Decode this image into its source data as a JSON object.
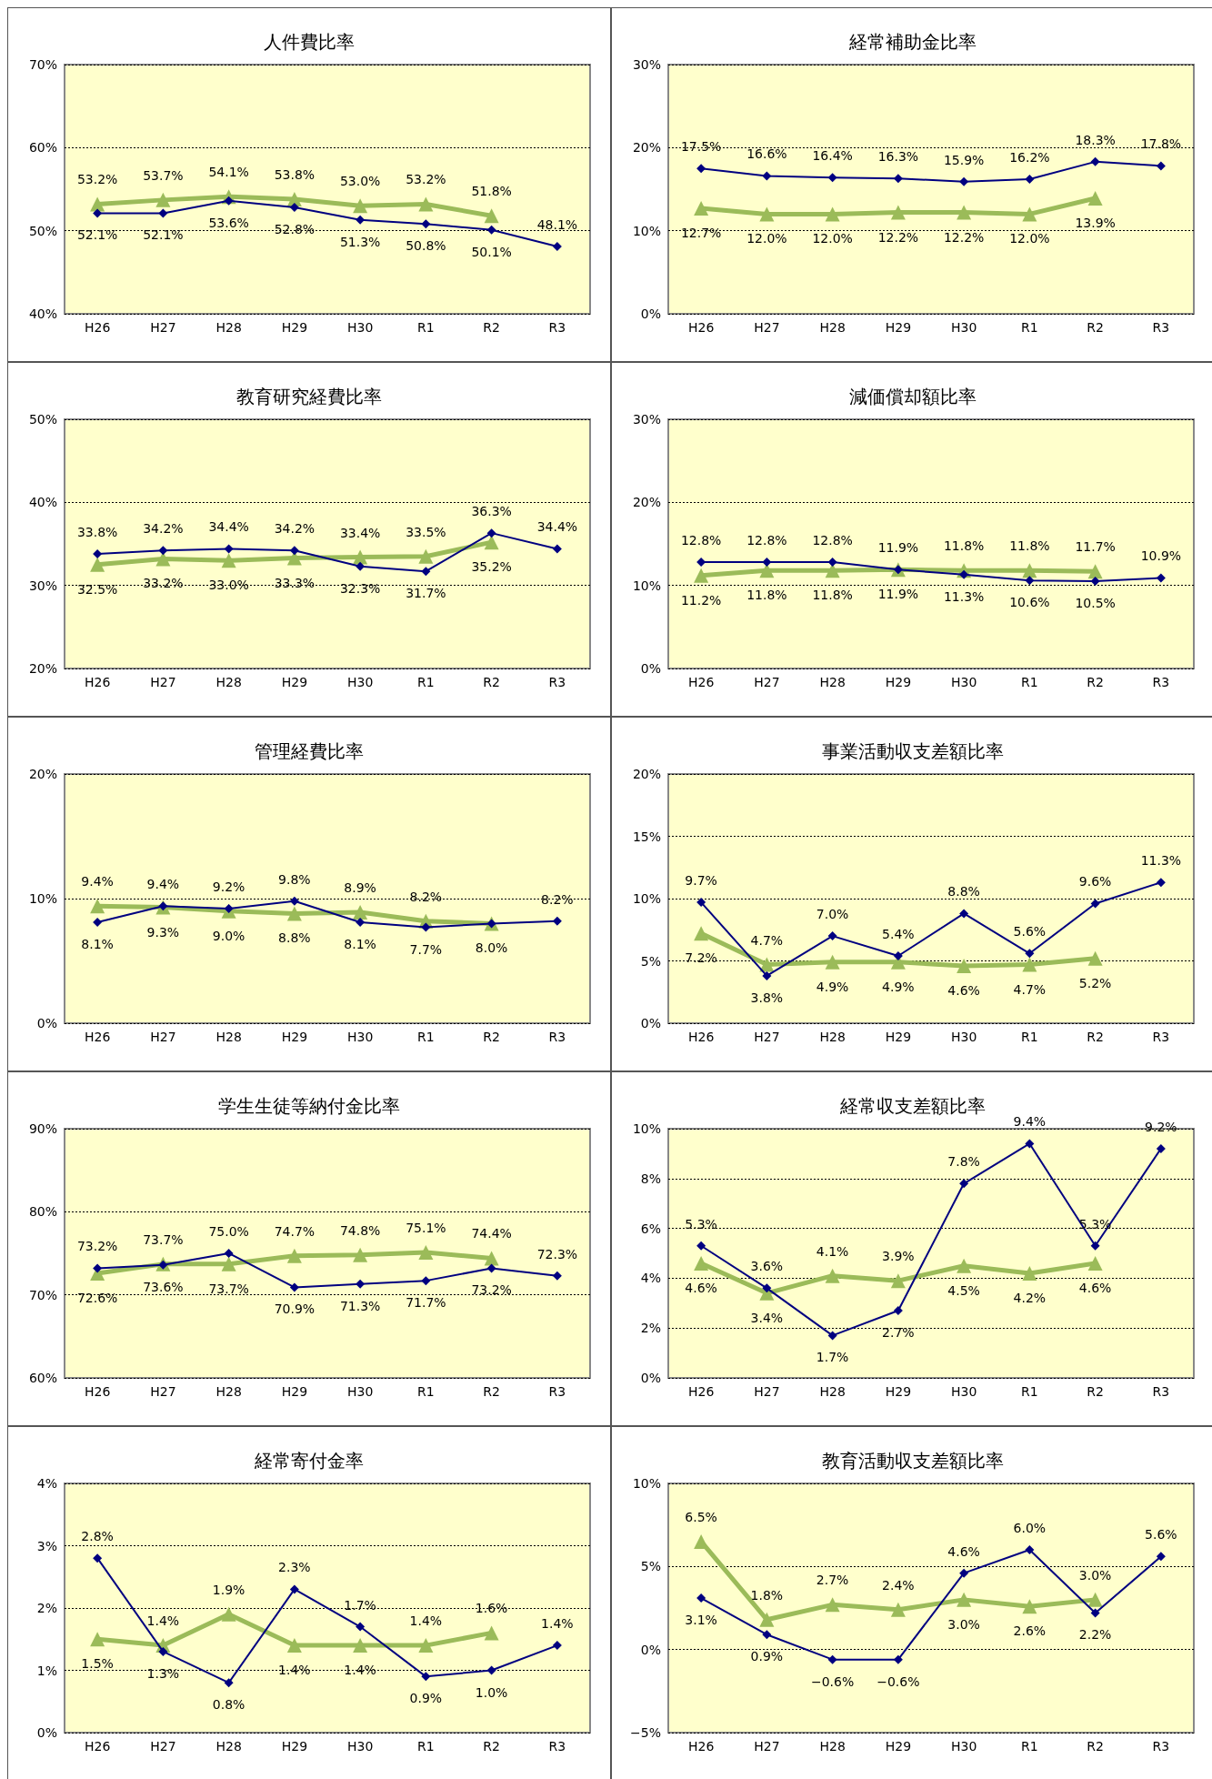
{
  "chart_data": [
    {
      "type": "line",
      "title": "人件費比率",
      "categories": [
        "H26",
        "H27",
        "H28",
        "H29",
        "H30",
        "R1",
        "R2",
        "R3"
      ],
      "ylim": [
        40,
        70
      ],
      "yticks": [
        {
          "value": 40,
          "label": "40%"
        },
        {
          "value": 50,
          "label": "50%"
        },
        {
          "value": 60,
          "label": "60%"
        },
        {
          "value": 70,
          "label": "70%"
        }
      ],
      "grid": "y",
      "series": [
        {
          "color": "#000080",
          "marker": "diamond",
          "values": [
            52.1,
            52.1,
            53.6,
            52.8,
            51.3,
            50.8,
            50.1,
            48.1
          ],
          "value_labels": [
            "52.1%",
            "52.1%",
            "53.6%",
            "52.8%",
            "51.3%",
            "50.8%",
            "50.1%",
            "48.1%"
          ]
        },
        {
          "color": "#9bbb59",
          "marker": "triangle",
          "values": [
            53.2,
            53.7,
            54.1,
            53.8,
            53.0,
            53.2,
            51.8,
            null
          ],
          "value_labels": [
            "53.2%",
            "53.7%",
            "54.1%",
            "53.8%",
            "53.0%",
            "53.2%",
            "51.8%",
            null
          ]
        }
      ]
    },
    {
      "type": "line",
      "title": "経常補助金比率",
      "categories": [
        "H26",
        "H27",
        "H28",
        "H29",
        "H30",
        "R1",
        "R2",
        "R3"
      ],
      "ylim": [
        0,
        30
      ],
      "yticks": [
        {
          "value": 0,
          "label": "0%"
        },
        {
          "value": 10,
          "label": "10%"
        },
        {
          "value": 20,
          "label": "20%"
        },
        {
          "value": 30,
          "label": "30%"
        }
      ],
      "grid": "y",
      "series": [
        {
          "color": "#000080",
          "marker": "diamond",
          "values": [
            17.5,
            16.6,
            16.4,
            16.3,
            15.9,
            16.2,
            18.3,
            17.8
          ],
          "value_labels": [
            "17.5%",
            "16.6%",
            "16.4%",
            "16.3%",
            "15.9%",
            "16.2%",
            "18.3%",
            "17.8%"
          ]
        },
        {
          "color": "#9bbb59",
          "marker": "triangle",
          "values": [
            12.7,
            12.0,
            12.0,
            12.2,
            12.2,
            12.0,
            13.9,
            null
          ],
          "value_labels": [
            "12.7%",
            "12.0%",
            "12.0%",
            "12.2%",
            "12.2%",
            "12.0%",
            "13.9%",
            null
          ]
        }
      ]
    },
    {
      "type": "line",
      "title": "教育研究経費比率",
      "categories": [
        "H26",
        "H27",
        "H28",
        "H29",
        "H30",
        "R1",
        "R2",
        "R3"
      ],
      "ylim": [
        20,
        50
      ],
      "yticks": [
        {
          "value": 20,
          "label": "20%"
        },
        {
          "value": 30,
          "label": "30%"
        },
        {
          "value": 40,
          "label": "40%"
        },
        {
          "value": 50,
          "label": "50%"
        }
      ],
      "grid": "y",
      "series": [
        {
          "color": "#000080",
          "marker": "diamond",
          "values": [
            33.8,
            34.2,
            34.4,
            34.2,
            32.3,
            31.7,
            36.3,
            34.4
          ],
          "value_labels": [
            "33.8%",
            "34.2%",
            "34.4%",
            "34.2%",
            "32.3%",
            "31.7%",
            "36.3%",
            "34.4%"
          ]
        },
        {
          "color": "#9bbb59",
          "marker": "triangle",
          "values": [
            32.5,
            33.2,
            33.0,
            33.3,
            33.4,
            33.5,
            35.2,
            null
          ],
          "value_labels": [
            "32.5%",
            "33.2%",
            "33.0%",
            "33.3%",
            "33.4%",
            "33.5%",
            "35.2%",
            null
          ]
        }
      ]
    },
    {
      "type": "line",
      "title": "減価償却額比率",
      "categories": [
        "H26",
        "H27",
        "H28",
        "H29",
        "H30",
        "R1",
        "R2",
        "R3"
      ],
      "ylim": [
        0,
        30
      ],
      "yticks": [
        {
          "value": 0,
          "label": "0%"
        },
        {
          "value": 10,
          "label": "10%"
        },
        {
          "value": 20,
          "label": "20%"
        },
        {
          "value": 30,
          "label": "30%"
        }
      ],
      "grid": "y",
      "series": [
        {
          "color": "#000080",
          "marker": "diamond",
          "values": [
            12.8,
            12.8,
            12.8,
            11.9,
            11.3,
            10.6,
            10.5,
            10.9
          ],
          "value_labels": [
            "12.8%",
            "12.8%",
            "12.8%",
            "11.9%",
            "11.3%",
            "10.6%",
            "10.5%",
            "10.9%"
          ]
        },
        {
          "color": "#9bbb59",
          "marker": "triangle",
          "values": [
            11.2,
            11.8,
            11.8,
            11.9,
            11.8,
            11.8,
            11.7,
            null
          ],
          "value_labels": [
            "11.2%",
            "11.8%",
            "11.8%",
            "11.9%",
            "11.8%",
            "11.8%",
            "11.7%",
            null
          ]
        }
      ]
    },
    {
      "type": "line",
      "title": "管理経費比率",
      "categories": [
        "H26",
        "H27",
        "H28",
        "H29",
        "H30",
        "R1",
        "R2",
        "R3"
      ],
      "ylim": [
        0,
        20
      ],
      "yticks": [
        {
          "value": 0,
          "label": "0%"
        },
        {
          "value": 10,
          "label": "10%"
        },
        {
          "value": 20,
          "label": "20%"
        }
      ],
      "grid": "y",
      "series": [
        {
          "color": "#000080",
          "marker": "diamond",
          "values": [
            8.1,
            9.4,
            9.2,
            9.8,
            8.1,
            7.7,
            8.0,
            8.2
          ],
          "value_labels": [
            "8.1%",
            "9.4%",
            "9.2%",
            "9.8%",
            "8.1%",
            "7.7%",
            null,
            "8.2%"
          ]
        },
        {
          "color": "#9bbb59",
          "marker": "triangle",
          "values": [
            9.4,
            9.3,
            9.0,
            8.8,
            8.9,
            8.2,
            8.0,
            null
          ],
          "value_labels": [
            "9.4%",
            "9.3%",
            "9.0%",
            "8.8%",
            "8.9%",
            "8.2%",
            "8.0%",
            null
          ]
        }
      ]
    },
    {
      "type": "line",
      "title": "事業活動収支差額比率",
      "categories": [
        "H26",
        "H27",
        "H28",
        "H29",
        "H30",
        "R1",
        "R2",
        "R3"
      ],
      "ylim": [
        0,
        20
      ],
      "yticks": [
        {
          "value": 0,
          "label": "0%"
        },
        {
          "value": 5,
          "label": "5%"
        },
        {
          "value": 10,
          "label": "10%"
        },
        {
          "value": 15,
          "label": "15%"
        },
        {
          "value": 20,
          "label": "20%"
        }
      ],
      "grid": "y",
      "series": [
        {
          "color": "#000080",
          "marker": "diamond",
          "values": [
            9.7,
            3.8,
            7.0,
            5.4,
            8.8,
            5.6,
            9.6,
            11.3
          ],
          "value_labels": [
            "9.7%",
            "3.8%",
            "7.0%",
            "5.4%",
            "8.8%",
            "5.6%",
            "9.6%",
            "11.3%"
          ]
        },
        {
          "color": "#9bbb59",
          "marker": "triangle",
          "values": [
            7.2,
            4.7,
            4.9,
            4.9,
            4.6,
            4.7,
            5.2,
            null
          ],
          "value_labels": [
            "7.2%",
            "4.7%",
            "4.9%",
            "4.9%",
            "4.6%",
            "4.7%",
            "5.2%",
            null
          ]
        }
      ]
    },
    {
      "type": "line",
      "title": "学生生徒等納付金比率",
      "categories": [
        "H26",
        "H27",
        "H28",
        "H29",
        "H30",
        "R1",
        "R2",
        "R3"
      ],
      "ylim": [
        60,
        90
      ],
      "yticks": [
        {
          "value": 60,
          "label": "60%"
        },
        {
          "value": 70,
          "label": "70%"
        },
        {
          "value": 80,
          "label": "80%"
        },
        {
          "value": 90,
          "label": "90%"
        }
      ],
      "grid": "y",
      "series": [
        {
          "color": "#000080",
          "marker": "diamond",
          "values": [
            73.2,
            73.6,
            75.0,
            70.9,
            71.3,
            71.7,
            73.2,
            72.3
          ],
          "value_labels": [
            "73.2%",
            "73.6%",
            "75.0%",
            "70.9%",
            "71.3%",
            "71.7%",
            "73.2%",
            "72.3%"
          ]
        },
        {
          "color": "#9bbb59",
          "marker": "triangle",
          "values": [
            72.6,
            73.7,
            73.7,
            74.7,
            74.8,
            75.1,
            74.4,
            null
          ],
          "value_labels": [
            "72.6%",
            "73.7%",
            "73.7%",
            "74.7%",
            "74.8%",
            "75.1%",
            "74.4%",
            null
          ]
        }
      ]
    },
    {
      "type": "line",
      "title": "経常収支差額比率",
      "categories": [
        "H26",
        "H27",
        "H28",
        "H29",
        "H30",
        "R1",
        "R2",
        "R3"
      ],
      "ylim": [
        0,
        10
      ],
      "yticks": [
        {
          "value": 0,
          "label": "0%"
        },
        {
          "value": 2,
          "label": "2%"
        },
        {
          "value": 4,
          "label": "4%"
        },
        {
          "value": 6,
          "label": "6%"
        },
        {
          "value": 8,
          "label": "8%"
        },
        {
          "value": 10,
          "label": "10%"
        }
      ],
      "grid": "y",
      "series": [
        {
          "color": "#000080",
          "marker": "diamond",
          "values": [
            5.3,
            3.6,
            1.7,
            2.7,
            7.8,
            9.4,
            5.3,
            9.2
          ],
          "value_labels": [
            "5.3%",
            "3.6%",
            "1.7%",
            "2.7%",
            "7.8%",
            "9.4%",
            "5.3%",
            "9.2%"
          ]
        },
        {
          "color": "#9bbb59",
          "marker": "triangle",
          "values": [
            4.6,
            3.4,
            4.1,
            3.9,
            4.5,
            4.2,
            4.6,
            null
          ],
          "value_labels": [
            "4.6%",
            "3.4%",
            "4.1%",
            "3.9%",
            "4.5%",
            "4.2%",
            "4.6%",
            null
          ]
        }
      ]
    },
    {
      "type": "line",
      "title": "経常寄付金率",
      "categories": [
        "H26",
        "H27",
        "H28",
        "H29",
        "H30",
        "R1",
        "R2",
        "R3"
      ],
      "ylim": [
        0,
        4
      ],
      "yticks": [
        {
          "value": 0,
          "label": "0%"
        },
        {
          "value": 1,
          "label": "1%"
        },
        {
          "value": 2,
          "label": "2%"
        },
        {
          "value": 3,
          "label": "3%"
        },
        {
          "value": 4,
          "label": "4%"
        }
      ],
      "grid": "y",
      "series": [
        {
          "color": "#000080",
          "marker": "diamond",
          "values": [
            2.8,
            1.3,
            0.8,
            2.3,
            1.7,
            0.9,
            1.0,
            1.4
          ],
          "value_labels": [
            "2.8%",
            "1.3%",
            "0.8%",
            "2.3%",
            "1.7%",
            "0.9%",
            "1.0%",
            "1.4%"
          ]
        },
        {
          "color": "#9bbb59",
          "marker": "triangle",
          "values": [
            1.5,
            1.4,
            1.9,
            1.4,
            1.4,
            1.4,
            1.6,
            null
          ],
          "value_labels": [
            "1.5%",
            "1.4%",
            "1.9%",
            "1.4%",
            "1.4%",
            "1.4%",
            "1.6%",
            null
          ]
        }
      ]
    },
    {
      "type": "line",
      "title": "教育活動収支差額比率",
      "categories": [
        "H26",
        "H27",
        "H28",
        "H29",
        "H30",
        "R1",
        "R2",
        "R3"
      ],
      "ylim": [
        -5,
        10
      ],
      "yticks": [
        {
          "value": -5,
          "label": "−5%"
        },
        {
          "value": 0,
          "label": "0%"
        },
        {
          "value": 5,
          "label": "5%"
        },
        {
          "value": 10,
          "label": "10%"
        }
      ],
      "grid": "y",
      "series": [
        {
          "color": "#000080",
          "marker": "diamond",
          "values": [
            3.1,
            0.9,
            -0.6,
            -0.6,
            4.6,
            6.0,
            2.2,
            5.6
          ],
          "value_labels": [
            "3.1%",
            "0.9%",
            "−0.6%",
            "−0.6%",
            "4.6%",
            "6.0%",
            "2.2%",
            "5.6%"
          ]
        },
        {
          "color": "#9bbb59",
          "marker": "triangle",
          "values": [
            6.5,
            1.8,
            2.7,
            2.4,
            3.0,
            2.6,
            3.0,
            null
          ],
          "value_labels": [
            "6.5%",
            "1.8%",
            "2.7%",
            "2.4%",
            "3.0%",
            "2.6%",
            "3.0%",
            null
          ]
        }
      ]
    }
  ]
}
